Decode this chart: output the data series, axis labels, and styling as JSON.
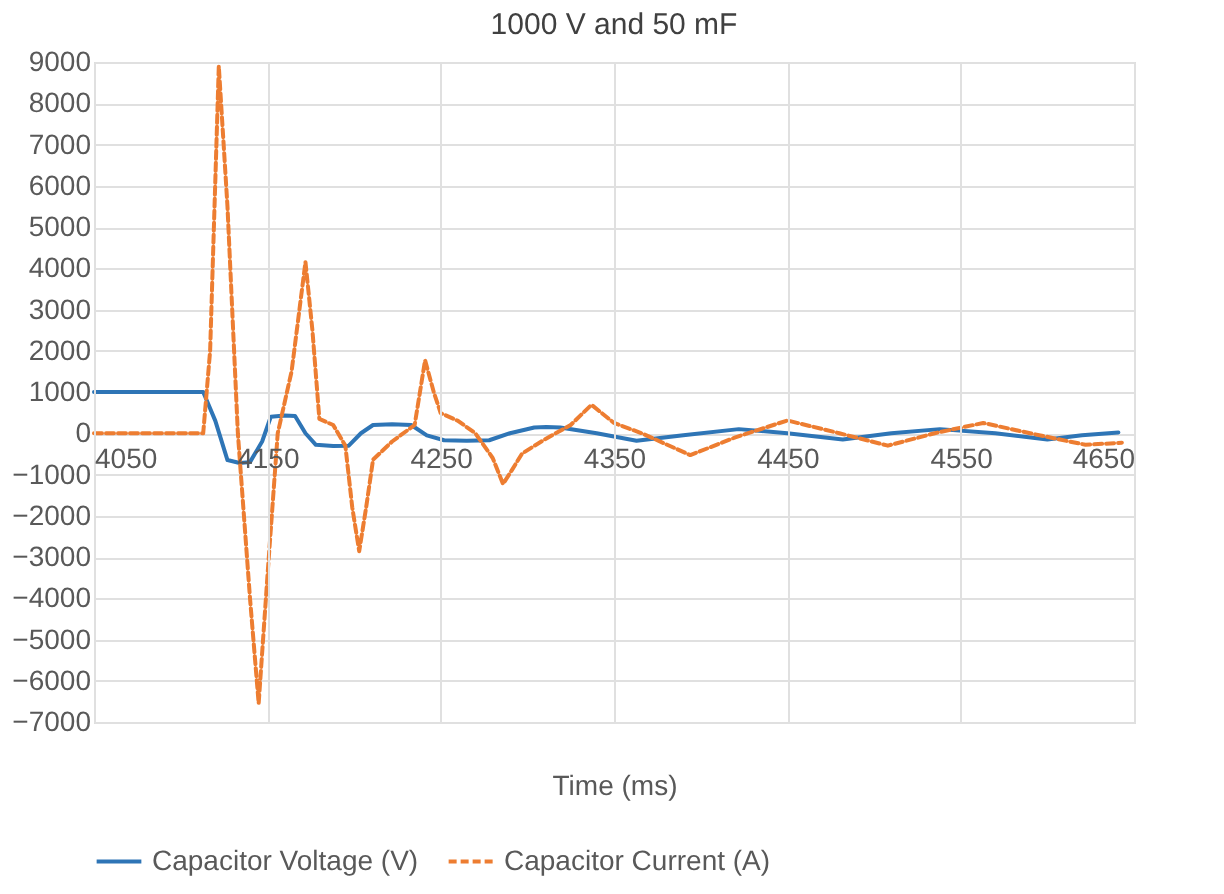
{
  "chart_data": {
    "type": "line",
    "title": "1000 V and 50 mF",
    "xlabel": "Time (ms)",
    "xlim": [
      4050,
      4650
    ],
    "xticks": [
      4050,
      4150,
      4250,
      4350,
      4450,
      4550,
      4650
    ],
    "ylim": [
      -7000,
      9000
    ],
    "yticks": [
      -7000,
      -6000,
      -5000,
      -4000,
      -3000,
      -2000,
      -1000,
      0,
      1000,
      2000,
      3000,
      4000,
      5000,
      6000,
      7000,
      8000,
      9000
    ],
    "grid": true,
    "legend": "bottom",
    "marker": "none",
    "series": [
      {
        "name": "Capacitor Voltage (V)",
        "color": "#2e75b6",
        "line_style": "solid",
        "x": [
          4050,
          4113,
          4120,
          4127,
          4134,
          4140,
          4147,
          4152,
          4160,
          4166,
          4172,
          4178,
          4188,
          4197,
          4204,
          4211,
          4222,
          4233,
          4242,
          4252,
          4265,
          4278,
          4290,
          4304,
          4311,
          4319,
          4340,
          4363,
          4390,
          4422,
          4450,
          4482,
          4510,
          4538,
          4570,
          4600,
          4620,
          4641
        ],
        "values": [
          1000,
          1000,
          300,
          -650,
          -720,
          -700,
          -200,
          400,
          430,
          420,
          0,
          -280,
          -310,
          -300,
          0,
          200,
          220,
          200,
          -50,
          -170,
          -180,
          -170,
          0,
          140,
          150,
          140,
          0,
          -180,
          -50,
          100,
          0,
          -150,
          0,
          100,
          0,
          -150,
          -50,
          20
        ]
      },
      {
        "name": "Capacitor Current (A)",
        "color": "#ed7d31",
        "line_style": "dashed",
        "x": [
          4050,
          4113,
          4117,
          4122,
          4127,
          4133,
          4140,
          4145,
          4150,
          4156,
          4164,
          4172,
          4176,
          4180,
          4188,
          4195,
          4199,
          4203,
          4207,
          4211,
          4222,
          4235,
          4241,
          4246,
          4250,
          4260,
          4270,
          4280,
          4286,
          4291,
          4297,
          4310,
          4325,
          4337,
          4350,
          4366,
          4394,
          4420,
          4450,
          4480,
          4508,
          4535,
          4563,
          4590,
          4622,
          4643
        ],
        "values": [
          0,
          0,
          2000,
          8900,
          5500,
          0,
          -4000,
          -6550,
          -3500,
          0,
          1500,
          4150,
          2500,
          350,
          200,
          -300,
          -1800,
          -2860,
          -1800,
          -640,
          -200,
          200,
          1770,
          1000,
          490,
          300,
          0,
          -600,
          -1230,
          -900,
          -490,
          -150,
          200,
          690,
          250,
          0,
          -530,
          -100,
          310,
          0,
          -300,
          0,
          250,
          0,
          -280,
          -230
        ]
      }
    ]
  }
}
